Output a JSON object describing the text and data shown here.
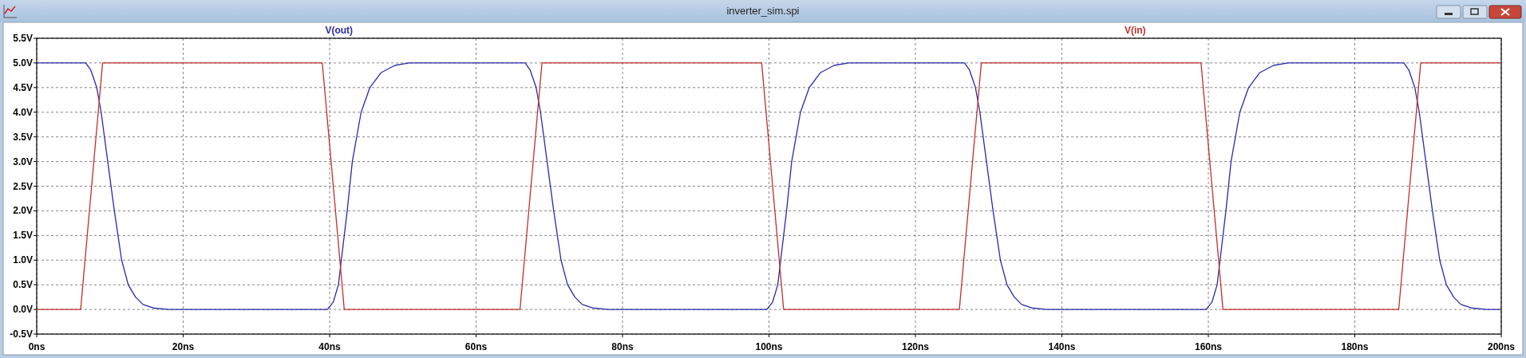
{
  "chart_data": {
    "type": "line",
    "title": "inverter_sim.spi",
    "legend": "top",
    "grid": true,
    "line_style": "solid",
    "marker": "none",
    "xlim": [
      0,
      200
    ],
    "xticks": [
      {
        "value": 0,
        "label": "0ns"
      },
      {
        "value": 20,
        "label": "20ns"
      },
      {
        "value": 40,
        "label": "40ns"
      },
      {
        "value": 60,
        "label": "60ns"
      },
      {
        "value": 80,
        "label": "80ns"
      },
      {
        "value": 100,
        "label": "100ns"
      },
      {
        "value": 120,
        "label": "120ns"
      },
      {
        "value": 140,
        "label": "140ns"
      },
      {
        "value": 160,
        "label": "160ns"
      },
      {
        "value": 180,
        "label": "180ns"
      },
      {
        "value": 200,
        "label": "200ns"
      }
    ],
    "ylim": [
      -0.5,
      5.5
    ],
    "yticks": [
      {
        "value": -0.5,
        "label": "-0.5V"
      },
      {
        "value": 0,
        "label": "0.0V"
      },
      {
        "value": 0.5,
        "label": "0.5V"
      },
      {
        "value": 1,
        "label": "1.0V"
      },
      {
        "value": 1.5,
        "label": "1.5V"
      },
      {
        "value": 2,
        "label": "2.0V"
      },
      {
        "value": 2.5,
        "label": "2.5V"
      },
      {
        "value": 3,
        "label": "3.0V"
      },
      {
        "value": 3.5,
        "label": "3.5V"
      },
      {
        "value": 4,
        "label": "4.0V"
      },
      {
        "value": 4.5,
        "label": "4.5V"
      },
      {
        "value": 5,
        "label": "5.0V"
      },
      {
        "value": 5.5,
        "label": "5.5V"
      }
    ],
    "series": [
      {
        "name": "V(out)",
        "color": "#2a2aa8",
        "x": [
          0,
          6.7,
          7.4,
          8.2,
          8.8,
          9.7,
          10.6,
          11.1,
          11.6,
          12.5,
          13.5,
          14.5,
          15.9,
          18,
          39.7,
          40.5,
          41.2,
          41.6,
          42.4,
          43.1,
          44.3,
          45.5,
          47,
          48.9,
          50.9,
          66.7,
          67.4,
          68.2,
          68.8,
          69.7,
          70.6,
          71.1,
          71.6,
          72.5,
          73.5,
          74.5,
          75.9,
          78,
          99.7,
          100.5,
          101.2,
          101.6,
          102.4,
          103.1,
          104.3,
          105.5,
          107,
          108.9,
          110.9,
          126.7,
          127.4,
          128.2,
          128.8,
          129.7,
          130.6,
          131.1,
          131.6,
          132.5,
          133.5,
          134.5,
          135.9,
          138,
          159.7,
          160.5,
          161.2,
          161.6,
          162.4,
          163.1,
          164.3,
          165.5,
          167,
          168.9,
          170.9,
          186.7,
          187.4,
          188.2,
          188.8,
          189.7,
          190.6,
          191.1,
          191.6,
          192.5,
          193.5,
          194.5,
          195.9,
          198,
          200
        ],
        "values": [
          5,
          5,
          4.85,
          4.5,
          4,
          3,
          2,
          1.5,
          1,
          0.5,
          0.25,
          0.1,
          0.03,
          0,
          0,
          0.15,
          0.5,
          1,
          2,
          3,
          4,
          4.5,
          4.8,
          4.95,
          5,
          5,
          4.85,
          4.5,
          4,
          3,
          2,
          1.5,
          1,
          0.5,
          0.25,
          0.1,
          0.03,
          0,
          0,
          0.15,
          0.5,
          1,
          2,
          3,
          4,
          4.5,
          4.8,
          4.95,
          5,
          5,
          4.85,
          4.5,
          4,
          3,
          2,
          1.5,
          1,
          0.5,
          0.25,
          0.1,
          0.03,
          0,
          0,
          0.15,
          0.5,
          1,
          2,
          3,
          4,
          4.5,
          4.8,
          4.95,
          5,
          5,
          4.85,
          4.5,
          4,
          3,
          2,
          1.5,
          1,
          0.5,
          0.25,
          0.1,
          0.03,
          0,
          0
        ]
      },
      {
        "name": "V(in)",
        "color": "#c0302c",
        "x": [
          0,
          6,
          9,
          39,
          42,
          66,
          69,
          99,
          102,
          126,
          129,
          159,
          162,
          186,
          189,
          200
        ],
        "values": [
          0,
          0,
          5,
          5,
          0,
          0,
          5,
          5,
          0,
          0,
          5,
          5,
          0,
          0,
          5,
          5
        ]
      }
    ]
  }
}
